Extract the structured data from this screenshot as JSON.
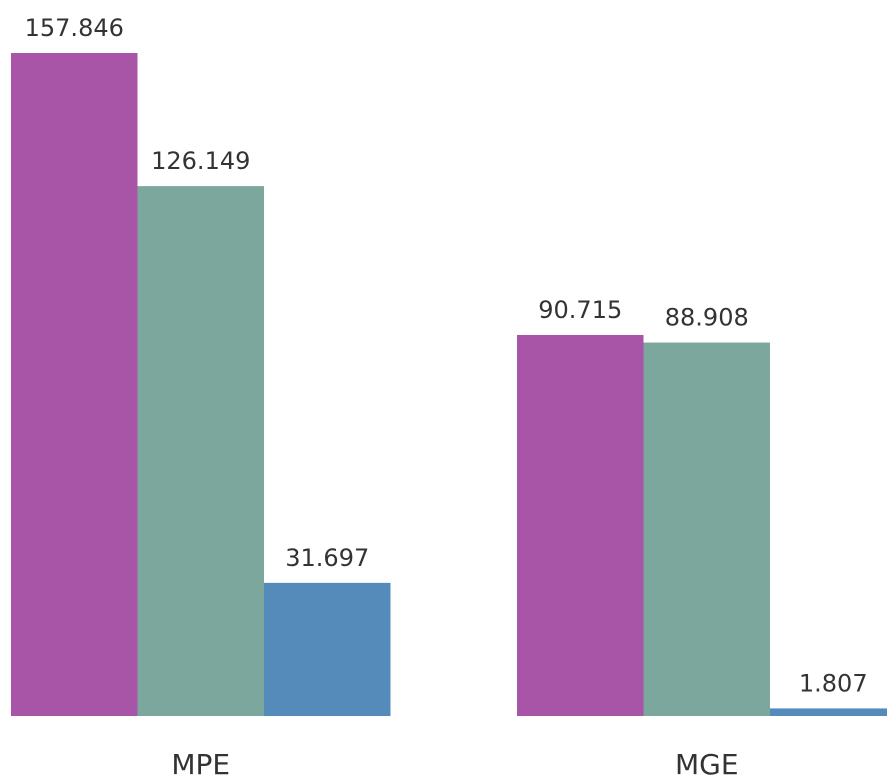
{
  "chart_data": {
    "type": "bar",
    "categories": [
      "MPE",
      "MGE"
    ],
    "series": [
      {
        "values": [
          157.846,
          90.715
        ],
        "color": "#a855a8"
      },
      {
        "values": [
          126.149,
          88.908
        ],
        "color": "#7ba79c"
      },
      {
        "values": [
          31.697,
          1.807
        ],
        "color": "#548bba"
      }
    ],
    "value_labels": [
      [
        "157.846",
        "90.715"
      ],
      [
        "126.149",
        "88.908"
      ],
      [
        "31.697",
        "1.807"
      ]
    ],
    "title": "",
    "xlabel": "",
    "ylabel": "",
    "ylim": [
      0,
      157.846
    ],
    "grid": false,
    "legend": "none",
    "y_axis_visible": false
  }
}
